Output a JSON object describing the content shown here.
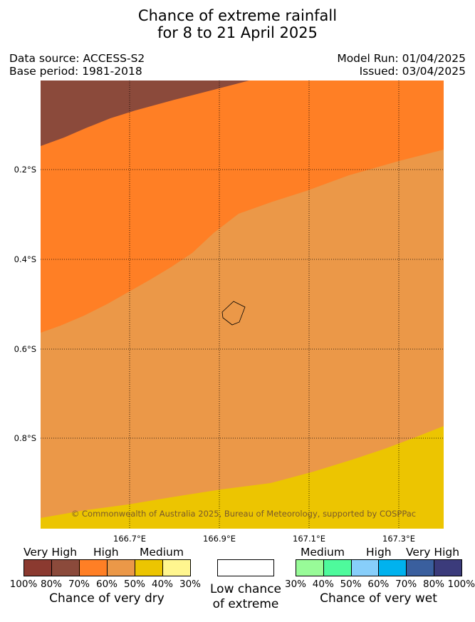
{
  "title": {
    "line1": "Chance of extreme rainfall",
    "line2": "for 8 to 21 April 2025"
  },
  "info": {
    "data_source": "Data source: ACCESS-S2",
    "base_period": "Base period: 1981-2018",
    "model_run": "Model Run: 01/04/2025",
    "issued": "Issued: 03/04/2025"
  },
  "map": {
    "lat_labels": [
      "0.2°S",
      "0.4°S",
      "0.6°S",
      "0.8°S"
    ],
    "lon_labels": [
      "166.7°E",
      "166.9°E",
      "167.1°E",
      "167.3°E"
    ],
    "copyright": "© Commonwealth of Australia 2025, Bureau of Meteorology, supported by COSPPac",
    "region_colors": {
      "very_high_dry_80": "#8b4a3b",
      "high_dry_70": "#ff7f25",
      "high_dry_60": "#eb9848",
      "medium_dry_50": "#ecc501"
    }
  },
  "legend": {
    "dry": {
      "categories": [
        "Very High",
        "High",
        "Medium"
      ],
      "colors": [
        "#8b3a30",
        "#8b4a3b",
        "#ff7f25",
        "#eb9848",
        "#ecc501",
        "#fff68f"
      ],
      "percentages": [
        "100%",
        "80%",
        "70%",
        "60%",
        "50%",
        "40%",
        "30%"
      ],
      "caption": "Chance of very dry"
    },
    "low": {
      "color": "#ffffff",
      "caption_line1": "Low chance",
      "caption_line2": "of extreme"
    },
    "wet": {
      "categories": [
        "Medium",
        "High",
        "Very High"
      ],
      "colors": [
        "#98fb98",
        "#4efa9c",
        "#87cefa",
        "#00b2ee",
        "#3a5f9e",
        "#3b3b7b"
      ],
      "percentages": [
        "30%",
        "40%",
        "50%",
        "60%",
        "70%",
        "80%",
        "100%"
      ],
      "caption": "Chance of very wet"
    }
  }
}
